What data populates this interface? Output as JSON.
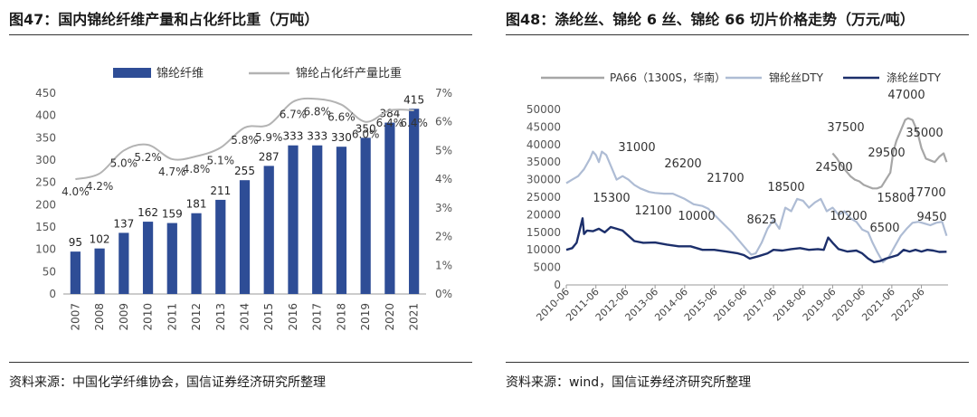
{
  "left": {
    "title": "图47：国内锦纶纤维产量和占化纤比重（万吨）",
    "source": "资料来源：中国化学纤维协会，国信证券经济研究所整理"
  },
  "right": {
    "title": "图48：涤纶丝、锦纶 6 丝、锦纶 66 切片价格走势（万元/吨）",
    "source": "资料来源：wind，国信证券经济研究所整理"
  },
  "colors": {
    "bar": "#2e4d96",
    "share_line": "#b3b3b3",
    "pa66": "#a6a6a6",
    "nylon_dty": "#aebcd4",
    "polyester_dty": "#1c2f6b"
  },
  "chart_data": [
    {
      "type": "bar",
      "title": "国内锦纶纤维产量和占化纤比重（万吨）",
      "categories": [
        "2007",
        "2008",
        "2009",
        "2010",
        "2011",
        "2012",
        "2013",
        "2014",
        "2015",
        "2016",
        "2017",
        "2018",
        "2019",
        "2020",
        "2021"
      ],
      "series": [
        {
          "name": "锦纶纤维",
          "axis": "left",
          "values": [
            95,
            102,
            137,
            162,
            159,
            181,
            211,
            255,
            287,
            333,
            333,
            330,
            350,
            384,
            415
          ],
          "labels": [
            "95",
            "102",
            "137",
            "162",
            "159",
            "181",
            "211",
            "255",
            "287",
            "333",
            "333",
            "330",
            "350",
            "384",
            "415"
          ]
        },
        {
          "name": "锦纶占化纤产量比重",
          "axis": "right",
          "kind": "line",
          "values": [
            4.0,
            4.2,
            5.0,
            5.2,
            4.7,
            4.8,
            5.1,
            5.8,
            5.9,
            6.7,
            6.8,
            6.6,
            6.0,
            6.4,
            6.4
          ],
          "labels": [
            "4.0%",
            "4.2%",
            "5.0%",
            "5.2%",
            "4.7%",
            "4.8%",
            "5.1%",
            "5.8%",
            "5.9%",
            "6.7%",
            "6.8%",
            "6.6%",
            "6.0%",
            "6.4%",
            "6.4%"
          ]
        }
      ],
      "ylim": [
        0,
        450
      ],
      "yticks": [
        "0",
        "50",
        "100",
        "150",
        "200",
        "250",
        "300",
        "350",
        "400",
        "450"
      ],
      "y2lim": [
        0,
        7
      ],
      "y2ticks": [
        "0%",
        "1%",
        "2%",
        "3%",
        "4%",
        "5%",
        "6%",
        "7%"
      ],
      "legend": "top"
    },
    {
      "type": "line",
      "title": "涤纶丝、锦纶 6 丝、锦纶 66 切片价格走势（万元/吨）",
      "x_ticks": [
        "2010-06",
        "2011-06",
        "2012-06",
        "2013-06",
        "2014-06",
        "2015-06",
        "2016-06",
        "2017-06",
        "2018-06",
        "2019-06",
        "2020-06",
        "2021-06",
        "2022-06"
      ],
      "ylim": [
        0,
        50000
      ],
      "yticks": [
        "0",
        "5000",
        "10000",
        "15000",
        "20000",
        "25000",
        "30000",
        "35000",
        "40000",
        "45000",
        "50000"
      ],
      "legend": "top",
      "series": [
        {
          "name": "PA66（1300S，华南）",
          "x": [
            2019.0,
            2019.15,
            2019.3,
            2019.45,
            2019.6,
            2019.75,
            2019.9,
            2020.05,
            2020.2,
            2020.35,
            2020.5,
            2020.65,
            2020.8,
            2020.95,
            2021.05,
            2021.15,
            2021.3,
            2021.45,
            2021.55,
            2021.7,
            2021.85,
            2022.0,
            2022.15,
            2022.3,
            2022.45,
            2022.6,
            2022.75,
            2022.85
          ],
          "values": [
            37500,
            36000,
            34000,
            32500,
            31000,
            30000,
            29500,
            28500,
            28000,
            27500,
            27500,
            28000,
            30000,
            32000,
            38000,
            41000,
            44000,
            47000,
            47500,
            47000,
            44000,
            39000,
            36000,
            35500,
            35000,
            36500,
            37500,
            35000
          ]
        },
        {
          "name": "锦纶丝DTY",
          "x": [
            2010.0,
            2010.2,
            2010.4,
            2010.6,
            2010.8,
            2010.9,
            2011.0,
            2011.1,
            2011.2,
            2011.35,
            2011.5,
            2011.7,
            2011.9,
            2012.1,
            2012.3,
            2012.5,
            2012.8,
            2013.0,
            2013.3,
            2013.6,
            2014.0,
            2014.3,
            2014.6,
            2014.8,
            2015.0,
            2015.3,
            2015.6,
            2015.9,
            2016.1,
            2016.25,
            2016.4,
            2016.6,
            2016.8,
            2017.0,
            2017.2,
            2017.4,
            2017.6,
            2017.8,
            2018.0,
            2018.2,
            2018.4,
            2018.6,
            2018.8,
            2019.0,
            2019.2,
            2019.4,
            2019.6,
            2019.8,
            2020.0,
            2020.2,
            2020.35,
            2020.5,
            2020.7,
            2020.9,
            2021.1,
            2021.3,
            2021.5,
            2021.7,
            2021.9,
            2022.1,
            2022.3,
            2022.5,
            2022.7,
            2022.85
          ],
          "values": [
            29000,
            30000,
            31000,
            33000,
            36000,
            38000,
            37000,
            35000,
            38000,
            37000,
            34000,
            30000,
            31000,
            30000,
            28500,
            27500,
            26500,
            26200,
            26000,
            26000,
            24500,
            23000,
            22500,
            21700,
            20000,
            17500,
            15000,
            12000,
            10000,
            8625,
            9000,
            12000,
            16000,
            18500,
            16000,
            22000,
            21000,
            24500,
            24000,
            22000,
            23500,
            24500,
            21000,
            22000,
            20000,
            21000,
            19000,
            18000,
            15800,
            15000,
            12000,
            9500,
            6500,
            8000,
            11000,
            14000,
            16000,
            17700,
            18000,
            17500,
            17000,
            17700,
            18000,
            14000
          ]
        },
        {
          "name": "涤纶丝DTY",
          "x": [
            2010.0,
            2010.2,
            2010.35,
            2010.45,
            2010.55,
            2010.6,
            2010.7,
            2010.9,
            2011.1,
            2011.3,
            2011.5,
            2011.7,
            2011.9,
            2012.1,
            2012.3,
            2012.6,
            2013.0,
            2013.4,
            2013.8,
            2014.2,
            2014.6,
            2015.0,
            2015.4,
            2015.8,
            2016.0,
            2016.2,
            2016.5,
            2016.8,
            2017.0,
            2017.3,
            2017.6,
            2017.9,
            2018.2,
            2018.5,
            2018.7,
            2018.85,
            2019.0,
            2019.2,
            2019.5,
            2019.8,
            2020.0,
            2020.2,
            2020.4,
            2020.6,
            2020.8,
            2021.0,
            2021.2,
            2021.4,
            2021.6,
            2021.8,
            2022.0,
            2022.2,
            2022.4,
            2022.6,
            2022.85
          ],
          "values": [
            10000,
            10500,
            12000,
            15500,
            19000,
            14500,
            15500,
            15300,
            16000,
            15000,
            16500,
            16000,
            15500,
            14000,
            12500,
            12000,
            12100,
            11500,
            11000,
            11000,
            10000,
            10000,
            9500,
            9000,
            8500,
            7500,
            8200,
            9000,
            10000,
            9800,
            10200,
            10500,
            10000,
            10200,
            10000,
            13500,
            12000,
            10200,
            9500,
            9800,
            9000,
            7500,
            6500,
            6800,
            7500,
            8000,
            8500,
            10000,
            9500,
            10000,
            9500,
            10000,
            9800,
            9400,
            9450
          ]
        }
      ],
      "annotations": [
        "47000",
        "37500",
        "35000",
        "29500",
        "24500",
        "31000",
        "26200",
        "21700",
        "18500",
        "10000",
        "8625",
        "15300",
        "12100",
        "10200",
        "15800",
        "6500",
        "17700",
        "9450"
      ]
    }
  ]
}
